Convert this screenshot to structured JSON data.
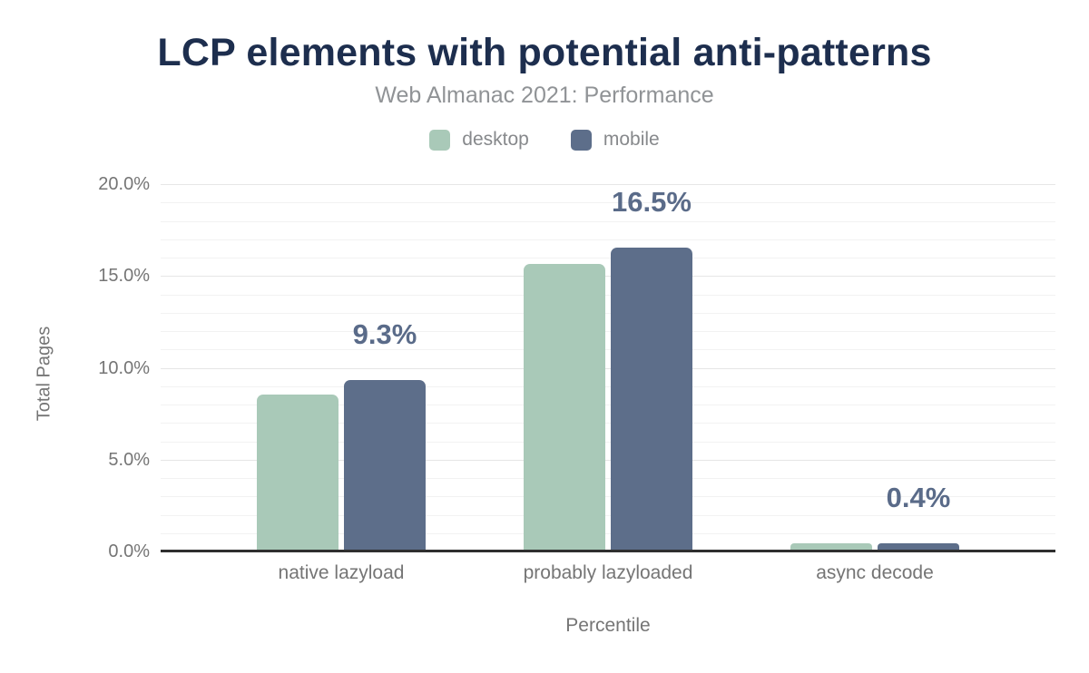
{
  "chart_data": {
    "type": "bar",
    "title": "LCP elements with potential anti-patterns",
    "subtitle": "Web Almanac 2021: Performance",
    "xlabel": "Percentile",
    "ylabel": "Total Pages",
    "categories": [
      "native lazyload",
      "probably lazyloaded",
      "async decode"
    ],
    "series": [
      {
        "name": "desktop",
        "color": "#a9c9b8",
        "values": [
          8.5,
          15.6,
          0.4
        ]
      },
      {
        "name": "mobile",
        "color": "#5d6e8a",
        "values": [
          9.3,
          16.5,
          0.4
        ]
      }
    ],
    "data_labels": [
      "9.3%",
      "16.5%",
      "0.4%"
    ],
    "y_ticks": [
      {
        "label": "20.0%",
        "value": 20
      },
      {
        "label": "15.0%",
        "value": 15
      },
      {
        "label": "10.0%",
        "value": 10
      },
      {
        "label": "5.0%",
        "value": 5
      },
      {
        "label": "0.0%",
        "value": 0
      }
    ],
    "ylim": [
      0,
      20
    ],
    "grid": {
      "major_step": 5,
      "minor_step": 1,
      "horizontal": true
    },
    "legend_position": "top"
  },
  "palette": {
    "title": "#1d2e4e",
    "subtitle": "#909396",
    "legend_text": "#87898c",
    "axis_text": "#757575",
    "annotation_text": "#5a6b89",
    "axis_line": "#2f2f2f",
    "grid_major": "#e6e6e6",
    "grid_minor": "#f2f2f2",
    "background": "#ffffff"
  }
}
